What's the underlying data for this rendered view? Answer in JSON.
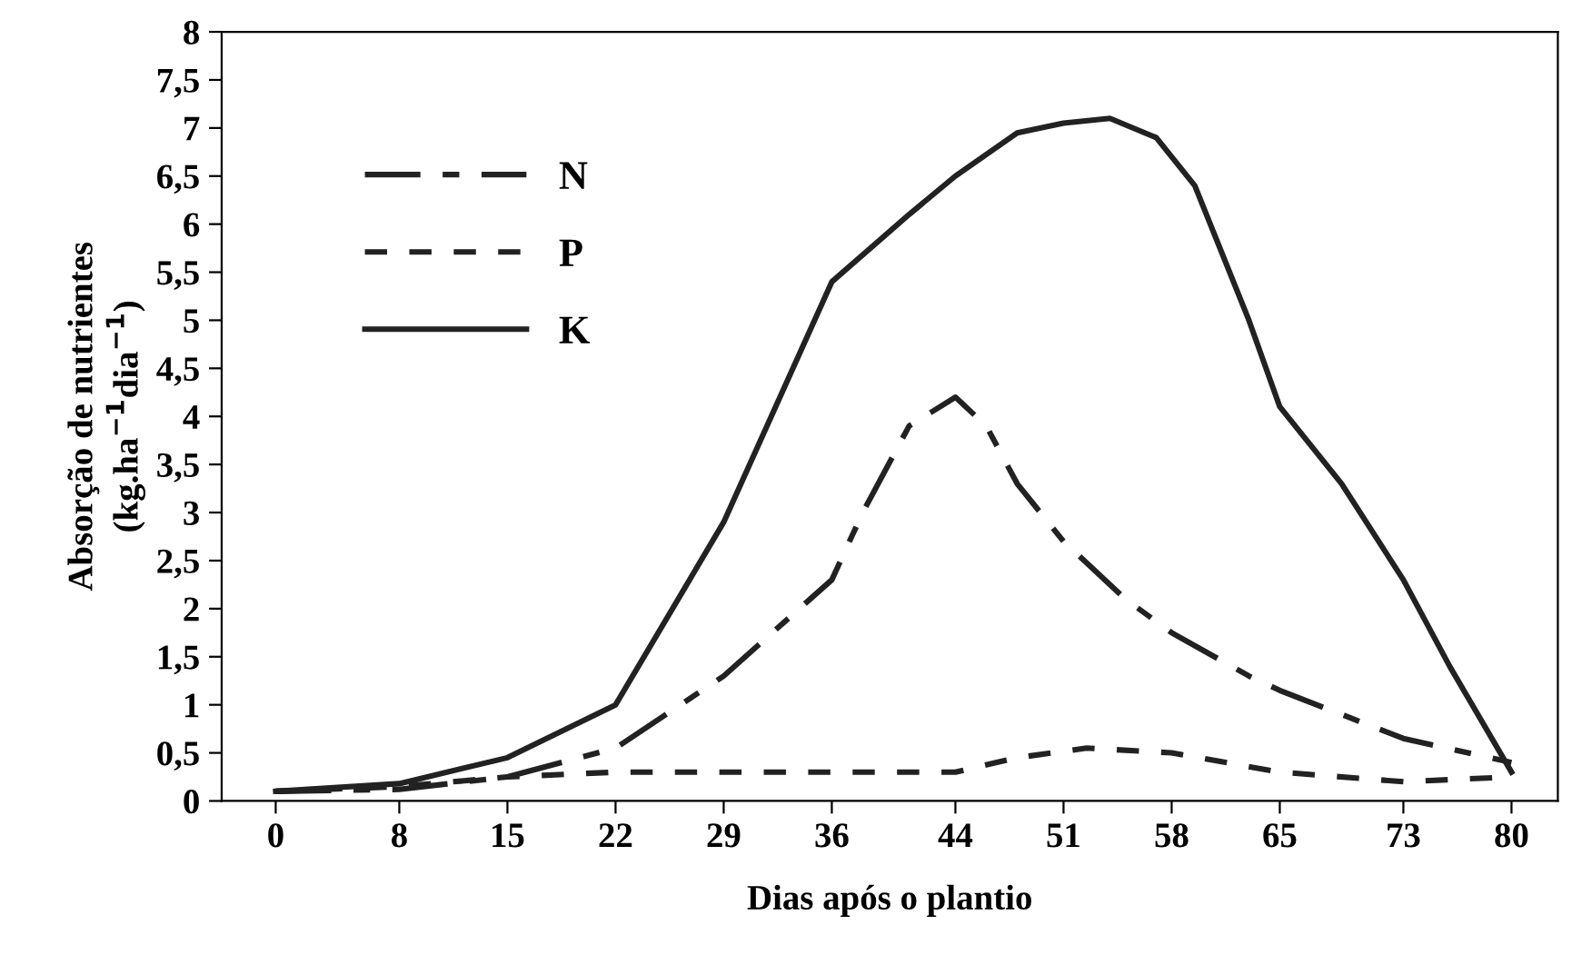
{
  "chart_data": {
    "type": "line",
    "xlabel": "Dias após o plantio",
    "ylabel": "Absorção de nutrientes\n(kg.ha$^{−1}$dia$^{−1}$)",
    "xlim": [
      -3.5,
      83
    ],
    "xticks": [
      0,
      8,
      15,
      22,
      29,
      36,
      44,
      51,
      58,
      65,
      73,
      80
    ],
    "ylim": [
      0,
      8
    ],
    "yticks": [
      0,
      {
        "value": 0.5,
        "label": "0,5"
      },
      1,
      {
        "value": 1.5,
        "label": "1,5"
      },
      2,
      {
        "value": 2.5,
        "label": "2,5"
      },
      3,
      {
        "value": 3.5,
        "label": "3,5"
      },
      4,
      {
        "value": 4.5,
        "label": "4,5"
      },
      5,
      {
        "value": 5.5,
        "label": "5,5"
      },
      6,
      {
        "value": 6.5,
        "label": "6,5"
      },
      7,
      {
        "value": 7.5,
        "label": "7,5"
      },
      8
    ],
    "grid": false,
    "legend": "top left",
    "series": [
      {
        "name": "N",
        "color": "#222222",
        "line_style": "dashdot",
        "x": [
          0,
          8,
          15,
          22,
          29,
          36,
          38,
          41,
          44,
          46,
          48,
          51,
          55,
          58,
          63,
          65,
          73,
          80
        ],
        "values": [
          0.1,
          0.12,
          0.25,
          0.55,
          1.3,
          2.3,
          3.0,
          3.9,
          4.2,
          3.9,
          3.3,
          2.7,
          2.1,
          1.75,
          1.3,
          1.15,
          0.65,
          0.4
        ]
      },
      {
        "name": "P",
        "color": "#222222",
        "line_style": "dashed",
        "x": [
          0,
          8,
          15,
          22,
          29,
          36,
          44,
          48,
          52.5,
          58,
          65,
          73,
          80
        ],
        "values": [
          0.1,
          0.15,
          0.25,
          0.3,
          0.3,
          0.3,
          0.3,
          0.45,
          0.55,
          0.5,
          0.3,
          0.2,
          0.25
        ]
      },
      {
        "name": "K",
        "color": "#222222",
        "line_style": "solid",
        "x": [
          0,
          8,
          15,
          22,
          29,
          36,
          41,
          44,
          48,
          51,
          54,
          57,
          59.5,
          63,
          65,
          69,
          73,
          76,
          80
        ],
        "values": [
          0.1,
          0.18,
          0.45,
          1.0,
          2.9,
          5.4,
          6.1,
          6.5,
          6.95,
          7.05,
          7.1,
          6.9,
          6.4,
          5.0,
          4.1,
          3.3,
          2.3,
          1.4,
          0.3
        ]
      }
    ]
  }
}
